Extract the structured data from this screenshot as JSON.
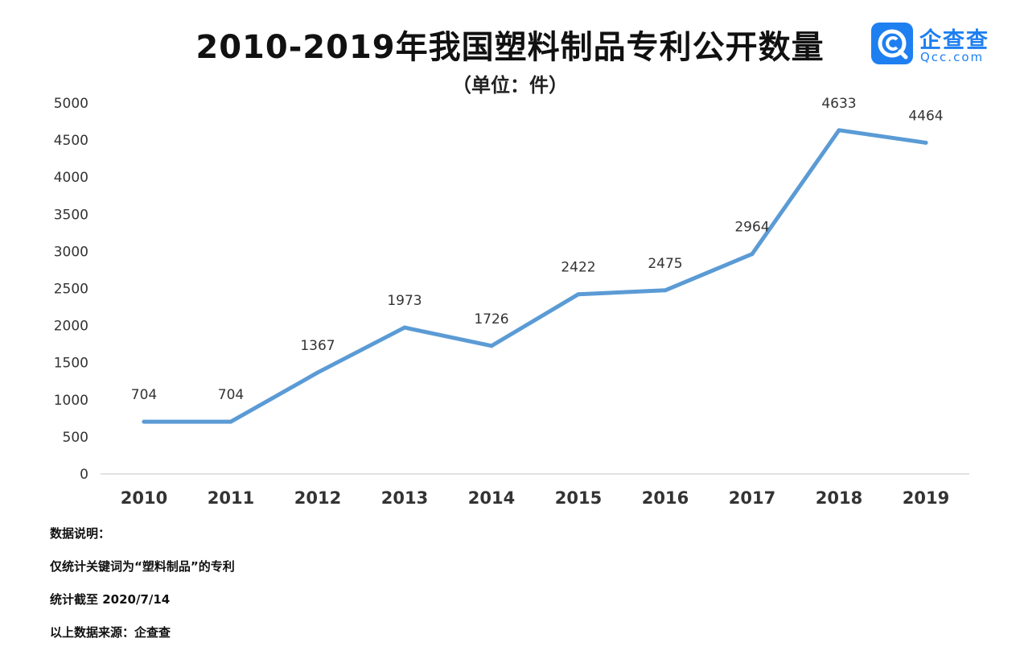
{
  "header": {
    "title": "2010-2019年我国塑料制品专利公开数量",
    "subtitle": "（单位：件）"
  },
  "logo": {
    "icon": "qichacha-logo-icon",
    "name_cn": "企查查",
    "name_en": "Qcc.com",
    "color": "#1e7ff0"
  },
  "chart_data": {
    "type": "line",
    "categories": [
      "2010",
      "2011",
      "2012",
      "2013",
      "2014",
      "2015",
      "2016",
      "2017",
      "2018",
      "2019"
    ],
    "series": [
      {
        "values": [
          704,
          704,
          1367,
          1973,
          1726,
          2422,
          2475,
          2964,
          4633,
          4464
        ]
      }
    ],
    "data_labels": [
      "704",
      "704",
      "1367",
      "1973",
      "1726",
      "2422",
      "2475",
      "2964",
      "4633",
      "4464"
    ],
    "yticks": [
      "0",
      "500",
      "1000",
      "1500",
      "2000",
      "2500",
      "3000",
      "3500",
      "4000",
      "4500",
      "5000"
    ],
    "ylim": [
      0,
      5000
    ],
    "grid": false,
    "line_color": "#5b9bd5"
  },
  "notes": [
    "数据说明：",
    "仅统计关键词为“塑料制品”的专利",
    "统计截至 2020/7/14",
    "以上数据来源：企查查"
  ]
}
